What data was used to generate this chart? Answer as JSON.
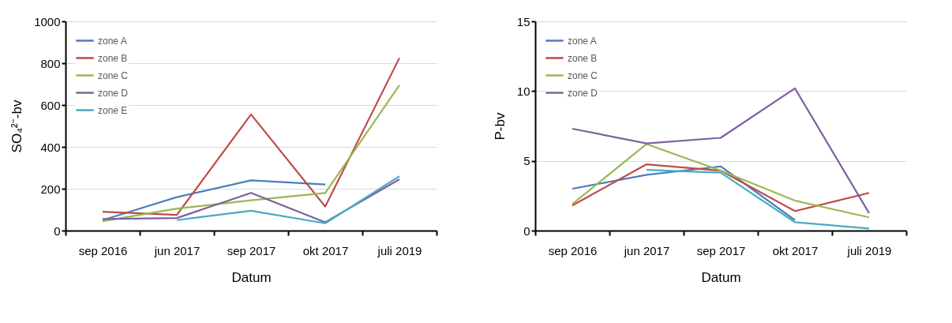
{
  "chart_data": [
    {
      "type": "line",
      "xlabel": "Datum",
      "ylabel": "SO₄²⁻-bv",
      "categories": [
        "sep 2016",
        "jun 2017",
        "sep 2017",
        "okt 2017",
        "juli 2019"
      ],
      "ylim": [
        0,
        1000
      ],
      "yticks": [
        0,
        200,
        400,
        600,
        800,
        1000
      ],
      "grid": "y",
      "legend": "top left",
      "series": [
        {
          "name": "zone A",
          "color": "#4a7ebb",
          "values": [
            50,
            160,
            240,
            220,
            null
          ]
        },
        {
          "name": "zone B",
          "color": "#be4b48",
          "values": [
            90,
            75,
            555,
            115,
            825
          ]
        },
        {
          "name": "zone C",
          "color": "#98b954",
          "values": [
            45,
            105,
            145,
            180,
            695
          ]
        },
        {
          "name": "zone D",
          "color": "#7d60a0",
          "values": [
            55,
            60,
            180,
            40,
            245
          ]
        },
        {
          "name": "zone E",
          "color": "#46aac5",
          "values": [
            null,
            50,
            95,
            35,
            260
          ]
        }
      ]
    },
    {
      "type": "line",
      "xlabel": "Datum",
      "ylabel": "P-bv",
      "categories": [
        "sep 2016",
        "jun 2017",
        "sep 2017",
        "okt 2017",
        "juli 2019"
      ],
      "ylim": [
        0,
        15
      ],
      "yticks": [
        0,
        5,
        10,
        15
      ],
      "grid": "y",
      "legend": "top left",
      "series": [
        {
          "name": "zone A",
          "color": "#4a7ebb",
          "values": [
            3.0,
            4.0,
            4.6,
            0.75,
            null
          ]
        },
        {
          "name": "zone B",
          "color": "#be4b48",
          "values": [
            1.8,
            4.75,
            4.3,
            1.4,
            2.7
          ]
        },
        {
          "name": "zone C",
          "color": "#98b954",
          "values": [
            1.9,
            6.2,
            4.3,
            2.15,
            0.95
          ]
        },
        {
          "name": "zone D",
          "color": "#7d60a0",
          "values": [
            7.3,
            6.25,
            6.65,
            10.2,
            1.25
          ]
        },
        {
          "color": "#46aac5",
          "values": [
            null,
            4.35,
            4.15,
            0.6,
            0.15
          ]
        }
      ]
    }
  ]
}
